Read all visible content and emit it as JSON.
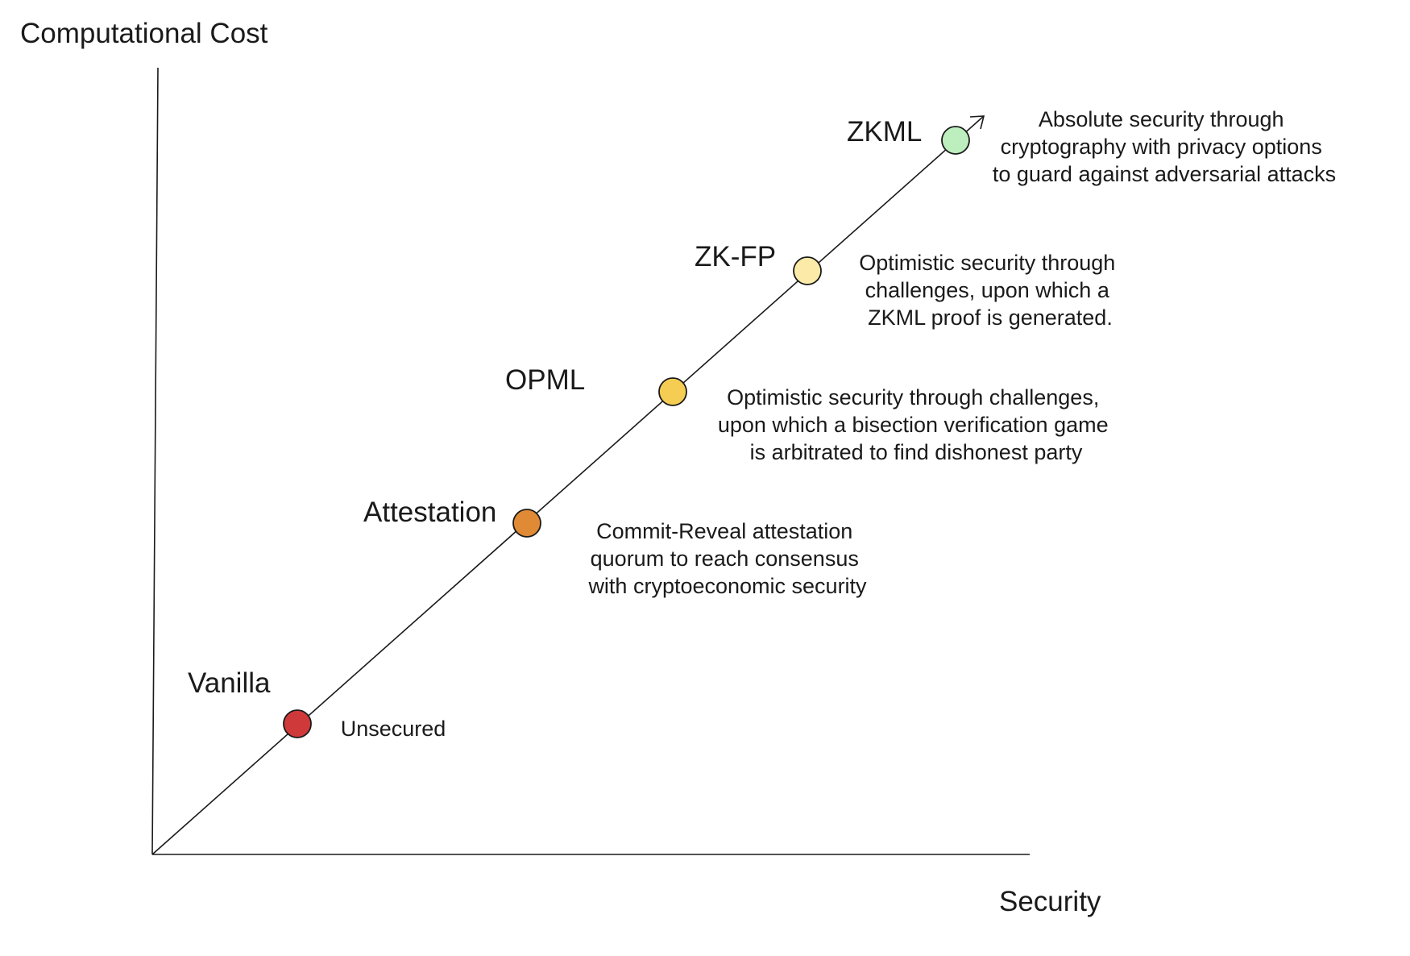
{
  "axes": {
    "y_title": "Computational Cost",
    "x_title": "Security"
  },
  "stages": [
    {
      "id": "vanilla",
      "label": "Vanilla",
      "color": "#d0393a",
      "description": [
        "Unsecured"
      ]
    },
    {
      "id": "attestation",
      "label": "Attestation",
      "color": "#e08a35",
      "description": [
        "Commit-Reveal attestation",
        "quorum to reach consensus",
        "with cryptoeconomic security"
      ]
    },
    {
      "id": "opml",
      "label": "OPML",
      "color": "#f5cd52",
      "description": [
        "Optimistic security through challenges,",
        "upon which a bisection verification game",
        "is arbitrated to find dishonest party"
      ]
    },
    {
      "id": "zk-fp",
      "label": "ZK-FP",
      "color": "#fbeaa8",
      "description": [
        "Optimistic security through",
        "challenges, upon which a",
        "ZKML proof is generated."
      ]
    },
    {
      "id": "zkml",
      "label": "ZKML",
      "color": "#bdeebd",
      "description": [
        "Absolute security through",
        "cryptography with privacy options",
        "to guard against adversarial attacks"
      ]
    }
  ]
}
